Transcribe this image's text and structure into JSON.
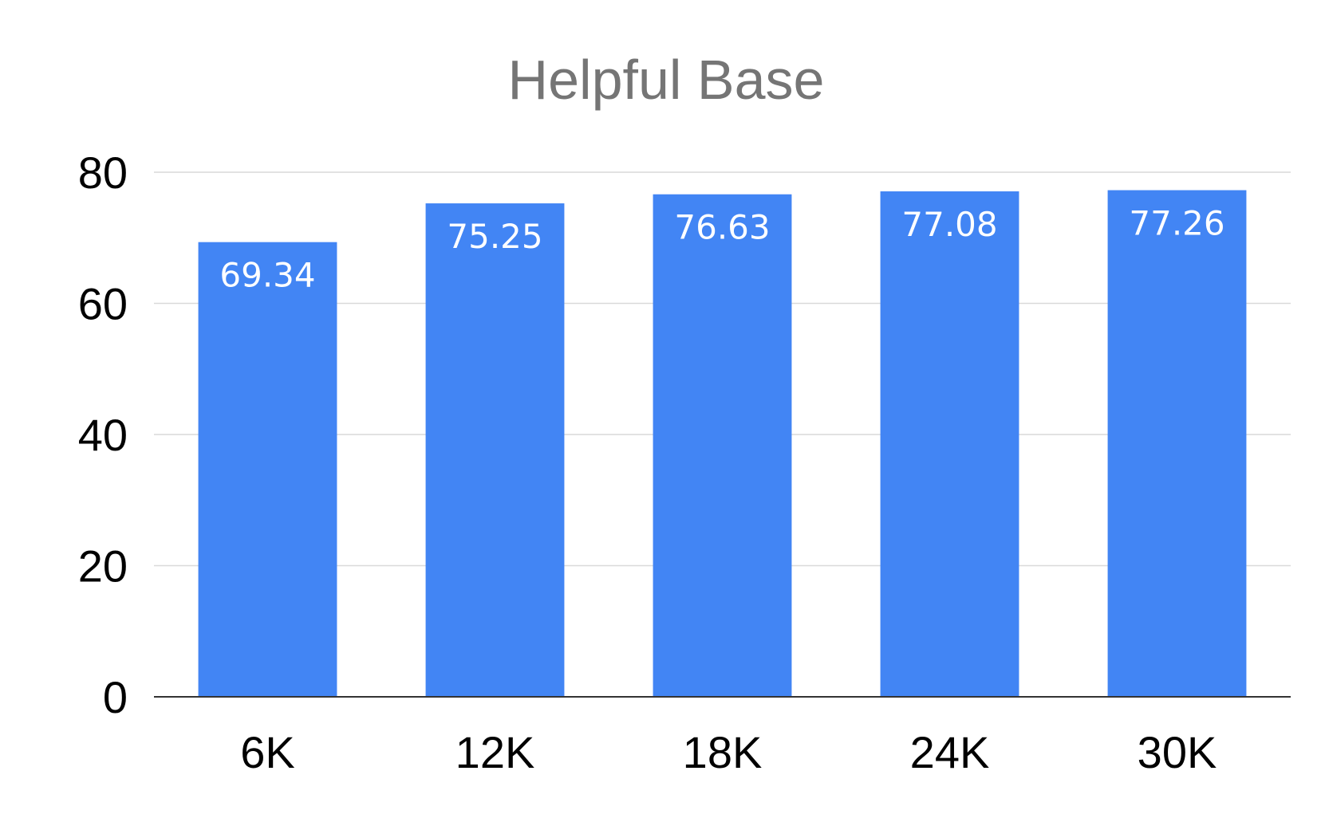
{
  "chart_data": {
    "type": "bar",
    "title": "Helpful Base",
    "xlabel": "",
    "ylabel": "",
    "categories": [
      "6K",
      "12K",
      "18K",
      "24K",
      "30K"
    ],
    "values": [
      69.34,
      75.25,
      76.63,
      77.08,
      77.26
    ],
    "value_labels": [
      "69.34",
      "75.25",
      "76.63",
      "77.08",
      "77.26"
    ],
    "ylim": [
      0,
      80
    ],
    "yticks": [
      0,
      20,
      40,
      60,
      80
    ],
    "ytick_labels": [
      "0",
      "20",
      "40",
      "60",
      "80"
    ],
    "grid": true,
    "legend": "none",
    "colors": {
      "bar": "#4285f4",
      "title": "#757575",
      "grid": "#d9d9d9",
      "data_label": "#ffffff"
    }
  }
}
